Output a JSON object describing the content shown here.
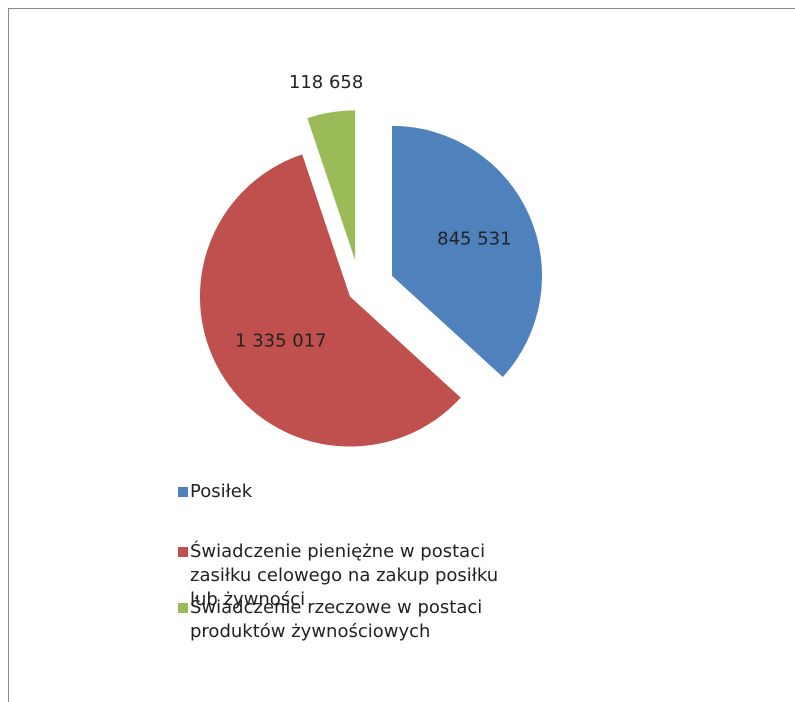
{
  "chart_data": {
    "type": "pie",
    "categories": [
      "Posiłek",
      "Świadczenie pieniężne w postaci zasiłku celowego na zakup posiłku lub żywności",
      "Świadczenie rzeczowe w postaci produktów żywnościowych"
    ],
    "values": [
      845531,
      1335017,
      118658
    ],
    "value_labels": [
      "845 531",
      "1 335 017",
      "118 658"
    ],
    "colors": [
      "#4f81bd",
      "#c0504d",
      "#9bbb59"
    ],
    "legend": "bottom"
  }
}
